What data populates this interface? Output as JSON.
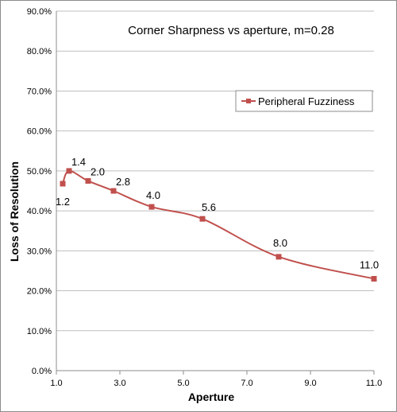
{
  "chart_data": {
    "type": "line",
    "title": "Corner Sharpness vs aperture, m=0.28",
    "xlabel": "Aperture",
    "ylabel": "Loss of Resolution",
    "xlim": [
      1.0,
      11.0
    ],
    "ylim": [
      0.0,
      90.0
    ],
    "x_ticks": [
      "1.0",
      "3.0",
      "5.0",
      "7.0",
      "9.0",
      "11.0"
    ],
    "x_tick_values": [
      1.0,
      3.0,
      5.0,
      7.0,
      9.0,
      11.0
    ],
    "y_ticks": [
      "0.0%",
      "10.0%",
      "20.0%",
      "30.0%",
      "40.0%",
      "50.0%",
      "60.0%",
      "70.0%",
      "80.0%",
      "90.0%"
    ],
    "y_tick_values": [
      0,
      10,
      20,
      30,
      40,
      50,
      60,
      70,
      80,
      90
    ],
    "grid": true,
    "legend_position": "right",
    "series": [
      {
        "name": "Peripheral Fuzziness",
        "color": "#c0504d",
        "x": [
          1.2,
          1.4,
          2.0,
          2.8,
          4.0,
          5.6,
          8.0,
          11.0
        ],
        "y": [
          46.8,
          50.0,
          47.5,
          45.0,
          41.0,
          38.0,
          28.5,
          23.0
        ],
        "point_labels": [
          "1.2",
          "1.4",
          "2.0",
          "2.8",
          "4.0",
          "5.6",
          "8.0",
          "11.0"
        ]
      }
    ]
  }
}
